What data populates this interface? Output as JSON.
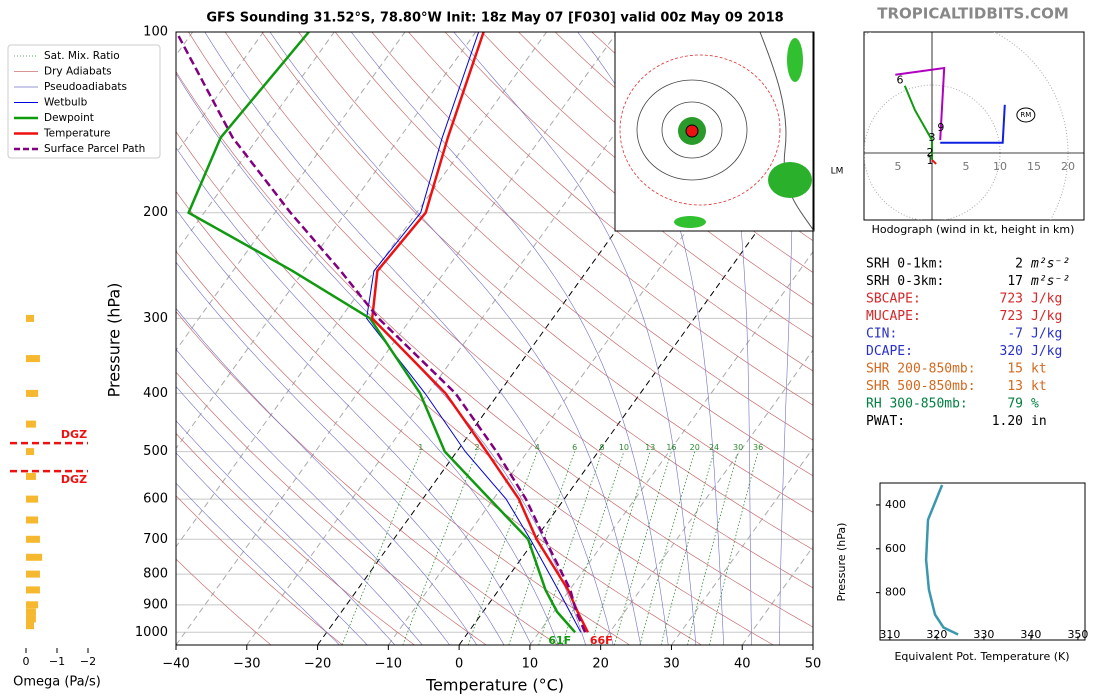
{
  "site": "TROPICALTIDBITS.COM",
  "indices": [
    {
      "label": "SRH 0-1km:",
      "value": "2",
      "unit": "m²s⁻²",
      "color": "#000000"
    },
    {
      "label": "SRH 0-3km:",
      "value": "17",
      "unit": "m²s⁻²",
      "color": "#000000"
    },
    {
      "label": "SBCAPE:",
      "value": "723",
      "unit": "J/kg",
      "color": "#d62728"
    },
    {
      "label": "MUCAPE:",
      "value": "723",
      "unit": "J/kg",
      "color": "#d62728"
    },
    {
      "label": "CIN:",
      "value": "-7",
      "unit": "J/kg",
      "color": "#2830c8"
    },
    {
      "label": "DCAPE:",
      "value": "320",
      "unit": "J/kg",
      "color": "#2830c8"
    },
    {
      "label": "SHR 200-850mb:",
      "value": "15",
      "unit": "kt",
      "color": "#d2691e"
    },
    {
      "label": "SHR 500-850mb:",
      "value": "13",
      "unit": "kt",
      "color": "#d2691e"
    },
    {
      "label": "RH 300-850mb:",
      "value": "79",
      "unit": "%",
      "color": "#008040"
    },
    {
      "label": "PWAT:",
      "value": "1.20",
      "unit": "in",
      "color": "#000000"
    }
  ],
  "chart_data": [
    {
      "type": "skewt",
      "title": "GFS Sounding 31.52°S, 78.80°W Init: 18z May 07 [F030] valid 00z May 09 2018",
      "x_label": "Temperature (°C)",
      "y_label": "Pressure (hPa)",
      "xlim": [
        -40,
        50
      ],
      "ylim": [
        100,
        1050
      ],
      "log_y": true,
      "xticks": [
        {
          "value": -40,
          "label": "−40"
        },
        {
          "value": -30,
          "label": "−30"
        },
        {
          "value": -20,
          "label": "−20"
        },
        {
          "value": -10,
          "label": "−10"
        },
        0,
        10,
        20,
        30,
        40,
        50
      ],
      "yticks": [
        100,
        200,
        300,
        400,
        500,
        600,
        700,
        800,
        900,
        1000
      ],
      "grid": true,
      "reference_lines": [
        {
          "name": "Sat. Mix. Ratio",
          "color": "#2e8b2e"
        },
        {
          "name": "Dry Adiabats",
          "color": "#c87070"
        },
        {
          "name": "Pseudoadiabats",
          "color": "#7070c8"
        }
      ],
      "mixing_ratios": [
        1,
        2,
        4,
        6,
        8,
        10,
        13,
        16,
        20,
        24,
        30,
        36
      ],
      "pressure": [
        1000,
        925,
        850,
        700,
        600,
        500,
        400,
        300,
        250,
        200,
        150,
        100
      ],
      "series": [
        {
          "name": "Wetbulb",
          "color": "#0000dd",
          "width": 1,
          "values": [
            15.9,
            12.3,
            8.4,
            -0.7,
            -8.2,
            -18.8,
            -30.4,
            -46.3,
            -50.1,
            -49.4,
            -54.0,
            -59.6
          ]
        },
        {
          "name": "Dewpoint",
          "color": "#109a10",
          "width": 2.5,
          "values": [
            15.1,
            10.5,
            6.6,
            -1.0,
            -10.5,
            -21.7,
            -31.1,
            -45.8,
            -61.6,
            -82.2,
            -85.3,
            -83.6
          ]
        },
        {
          "name": "Temperature",
          "color": "#ee1111",
          "width": 2.5,
          "values": [
            16.9,
            13.4,
            9.8,
            0.2,
            -6.4,
            -15.8,
            -27.5,
            -45.5,
            -49.6,
            -48.7,
            -53.2,
            -58.9
          ]
        },
        {
          "name": "Surface Parcel Path",
          "color": "#800080",
          "width": 2.5,
          "dashed": true,
          "values": [
            16.5,
            13.2,
            10.1,
            1.4,
            -5.4,
            -14.4,
            -26.1,
            -44.6,
            -54.8,
            -67.8,
            -83.6,
            -102.3
          ]
        }
      ],
      "surface_labels": [
        {
          "text": "61F",
          "color": "#109a10"
        },
        {
          "text": "66F",
          "color": "#ee1111"
        }
      ],
      "annotation": "LM"
    },
    {
      "type": "hodograph",
      "caption": "Hodograph (wind in kt, height in km)",
      "xlim": [
        -10,
        22.35
      ],
      "ylim": [
        -9.85,
        17.8
      ],
      "xticks": [
        {
          "value": -5,
          "label": "5"
        },
        5,
        10,
        15,
        20
      ],
      "rings": [
        10,
        20,
        30
      ],
      "series": [
        {
          "color": "#ee1111",
          "x": [
            0.6,
            0
          ],
          "values": [
            -1.6,
            -1.0
          ]
        },
        {
          "color": "#109a10",
          "x": [
            0,
            0,
            -2.5,
            -4
          ],
          "values": [
            -1.0,
            1.9,
            6.3,
            9.9
          ]
        },
        {
          "color": "#b000c0",
          "x": [
            -5.4,
            1.8,
            1.2
          ],
          "values": [
            11.5,
            12.5,
            1.9
          ]
        },
        {
          "color": "#1020e0",
          "x": [
            1.2,
            10.4,
            10.7
          ],
          "values": [
            1.5,
            1.5,
            7.1
          ]
        }
      ],
      "points": [
        {
          "label": "1",
          "u": -0.3,
          "v": -1.2
        },
        {
          "label": "2",
          "u": -0.3,
          "v": 0
        },
        {
          "label": "3",
          "u": 0,
          "v": 2.2
        },
        {
          "label": "6",
          "u": -4.7,
          "v": 10.7
        },
        {
          "label": "9",
          "u": 1.3,
          "v": 3.7
        }
      ],
      "storm_motion": {
        "label": "RM",
        "u": 13.8,
        "v": 5.6
      }
    },
    {
      "type": "line",
      "x_label": "Equivalent Pot. Temperature (K)",
      "y_label": "Pressure (hPa)",
      "xlim": [
        307.9,
        351.5
      ],
      "ylim": [
        300,
        1016
      ],
      "xticks": [
        310,
        320,
        330,
        340,
        350
      ],
      "yticks": [
        400,
        600,
        800
      ],
      "pressure": [
        309,
        468,
        650,
        786,
        900,
        959,
        991
      ],
      "series": [
        {
          "color": "#3a98ad",
          "values": [
            321.1,
            318.1,
            317.7,
            318.3,
            319.6,
            321.4,
            324.5
          ]
        }
      ]
    },
    {
      "type": "bar",
      "x_label": "Omega (Pa/s)",
      "xlim": [
        0.5,
        -2.2
      ],
      "xticks": [
        0,
        {
          "value": -1,
          "label": "−1"
        },
        {
          "value": -2,
          "label": "−2"
        }
      ],
      "color": "#f5b82e",
      "pressure": [
        300,
        350,
        400,
        450,
        500,
        550,
        600,
        650,
        700,
        750,
        800,
        850,
        900,
        925,
        950,
        975
      ],
      "values": [
        -0.26,
        -0.45,
        -0.39,
        -0.32,
        -0.26,
        -0.32,
        -0.39,
        -0.39,
        -0.45,
        -0.52,
        -0.45,
        -0.45,
        -0.39,
        -0.32,
        -0.32,
        -0.26
      ],
      "dgz": [
        {
          "text": "DGZ",
          "pressure": 484
        },
        {
          "text": "DGZ",
          "pressure": 539
        }
      ]
    }
  ]
}
